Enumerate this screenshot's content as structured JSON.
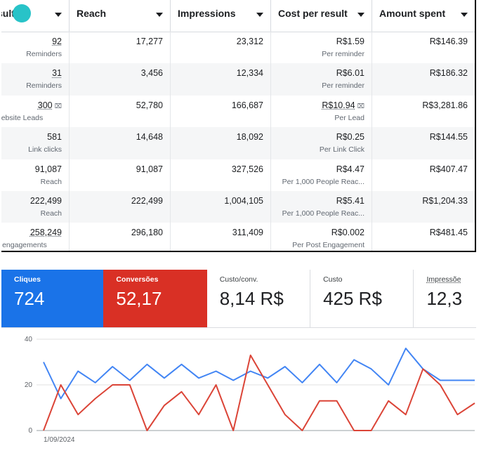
{
  "table": {
    "headers": [
      {
        "label": "sults"
      },
      {
        "label": "Reach"
      },
      {
        "label": "Impressions"
      },
      {
        "label": "Cost per result"
      },
      {
        "label": "Amount spent"
      }
    ],
    "rows": [
      {
        "results": "92",
        "results_sub": "Reminders",
        "reach": "17,277",
        "impressions": "23,312",
        "cost": "R$1.59",
        "cost_sub": "Per reminder",
        "spent": "R$146.39"
      },
      {
        "results": "31",
        "results_sub": "Reminders",
        "reach": "3,456",
        "impressions": "12,334",
        "cost": "R$6.01",
        "cost_sub": "Per reminder",
        "spent": "R$186.32"
      },
      {
        "results": "300",
        "results_sub": "Website Leads",
        "reach": "52,780",
        "impressions": "166,687",
        "cost": "R$10.94",
        "cost_sub": "Per Lead",
        "spent": "R$3,281.86"
      },
      {
        "results": "581",
        "results_sub": "Link clicks",
        "reach": "14,648",
        "impressions": "18,092",
        "cost": "R$0.25",
        "cost_sub": "Per Link Click",
        "spent": "R$144.55"
      },
      {
        "results": "91,087",
        "results_sub": "Reach",
        "reach": "91,087",
        "impressions": "327,526",
        "cost": "R$4.47",
        "cost_sub": "Per 1,000 People Reac...",
        "spent": "R$407.47"
      },
      {
        "results": "222,499",
        "results_sub": "Reach",
        "reach": "222,499",
        "impressions": "1,004,105",
        "cost": "R$5.41",
        "cost_sub": "Per 1,000 People Reac...",
        "spent": "R$1,204.33"
      },
      {
        "results": "258,249",
        "results_sub": "st engagements",
        "reach": "296,180",
        "impressions": "311,409",
        "cost": "R$0.002",
        "cost_sub": "Per Post Engagement",
        "spent": "R$481.45"
      }
    ]
  },
  "metrics": [
    {
      "label": "Cliques",
      "value": "724",
      "color": "#1a73e8"
    },
    {
      "label": "Conversões",
      "value": "52,17",
      "color": "#d93025"
    },
    {
      "label": "Custo/conv.",
      "value": "8,14 R$"
    },
    {
      "label": "Custo",
      "value": "425 R$"
    },
    {
      "label": "Impressõe",
      "value": "12,3"
    }
  ],
  "chart_data": {
    "type": "line",
    "title": "",
    "xlabel": "",
    "ylabel": "",
    "ylim": [
      0,
      40
    ],
    "yticks": [
      "40",
      "20",
      "0"
    ],
    "x_start_label": "1/09/2024",
    "grid": true,
    "series": [
      {
        "name": "Cliques",
        "color": "#4285f4",
        "values": [
          30,
          14,
          26,
          21,
          28,
          22,
          29,
          23,
          29,
          23,
          26,
          22,
          26,
          23,
          28,
          21,
          29,
          21,
          31,
          27,
          20,
          36,
          27,
          22,
          22,
          22
        ]
      },
      {
        "name": "Conversões",
        "color": "#db4437",
        "values": [
          0,
          20,
          7,
          14,
          20,
          20,
          0,
          11,
          17,
          7,
          20,
          0,
          33,
          20,
          7,
          0,
          13,
          13,
          0,
          0,
          13,
          7,
          27,
          20,
          7,
          12
        ]
      }
    ]
  }
}
